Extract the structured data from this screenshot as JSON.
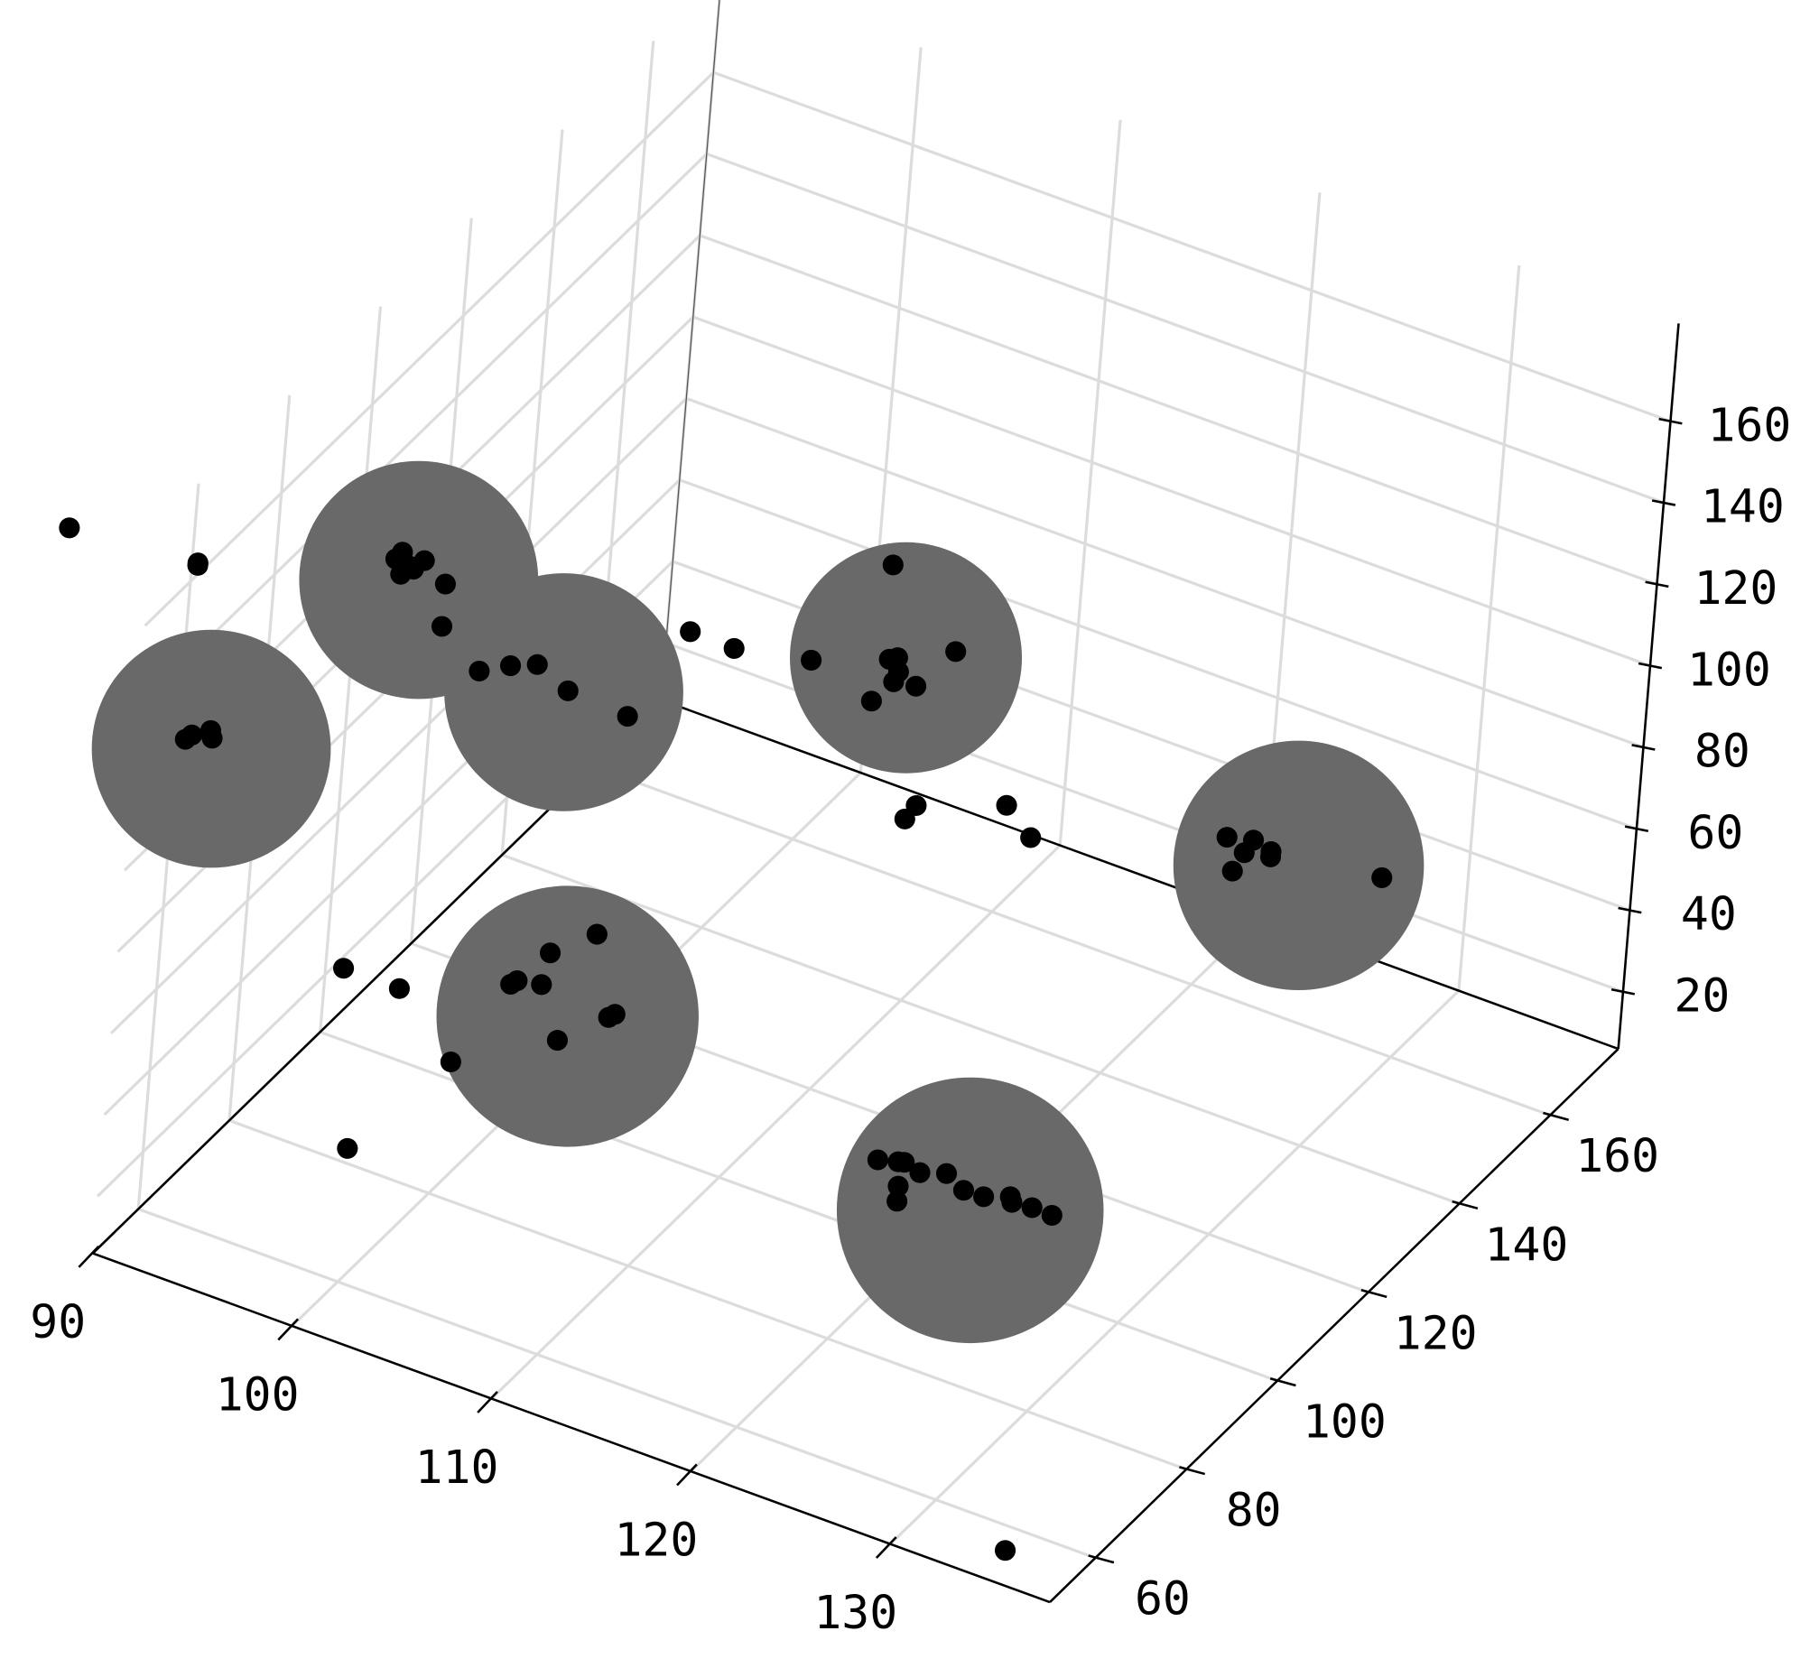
{
  "chart_data": {
    "type": "scatter3d",
    "xlim": [
      90,
      138
    ],
    "ylim": [
      50,
      175
    ],
    "zlim": [
      6,
      184
    ],
    "xticks": [
      90,
      100,
      110,
      120,
      130
    ],
    "yticks": [
      60,
      80,
      100,
      120,
      140,
      160
    ],
    "zticks": [
      20,
      40,
      60,
      80,
      100,
      120,
      140,
      160
    ],
    "grid": true,
    "series": [
      {
        "marker": "sphere",
        "color": "#696969",
        "x": [
          92.3,
          95.0,
          101.5,
          111.3,
          127.8,
          103.2,
          124.6
        ],
        "y": [
          57,
          90,
          95,
          128,
          145,
          94,
          89
        ],
        "z": [
          126.3,
          136.7,
          115.3,
          105.4,
          65.4,
          39.9,
          35.9
        ],
        "sizes": [
          103,
          103,
          103,
          100,
          108,
          113,
          115
        ]
      },
      {
        "marker": "point",
        "color": "#000000",
        "x": [
          119.9,
          120.9,
          121.2,
          122.0,
          123.3,
          124.2,
          125.2,
          126.5,
          126.6,
          127.6,
          128.6,
          121.0,
          121.0,
          134.6,
          104.3,
          102.1,
          100.6,
          100.3,
          101.8,
          105.2,
          105.5,
          102.8,
          92.1,
          94.9,
          97.7,
          97.9,
          124.2,
          125.5,
          125.1,
          126.4,
          126.4,
          124.6,
          131.9,
          110.3,
          106.7,
          113.7,
          110.5,
          110.9,
          111.0,
          110.8,
          111.9,
          109.8,
          112.4,
          111.9,
          116.8,
          118.1,
          100.7,
          102.9,
          97.3,
          98.8,
          100.1,
          101.7,
          104.7,
          95.3,
          95.3,
          94.1,
          93.8,
          94.5,
          95.2,
          94.1,
          94.7,
          91.0,
          91.3,
          92.2,
          92.3,
          84.5,
          90.9,
          90.9
        ],
        "y": [
          89,
          89,
          89,
          89,
          89,
          89,
          89,
          89,
          89,
          89,
          89,
          89,
          89,
          55,
          94,
          94,
          94,
          94,
          94,
          94,
          94,
          94,
          94,
          94,
          94,
          70,
          145,
          145,
          145,
          145,
          145,
          145,
          145,
          128,
          128,
          128,
          128,
          128,
          128,
          128,
          128,
          128,
          128,
          128,
          128,
          128,
          128,
          128,
          95,
          95,
          95,
          95,
          95,
          95,
          95,
          90,
          90,
          90,
          90,
          90,
          90,
          57,
          57,
          57,
          57,
          57,
          57,
          57
        ],
        "z": [
          39.9,
          41.2,
          41.6,
          40.5,
          42.6,
          40.1,
          40.3,
          42.6,
          41.4,
          41.9,
          41.8,
          35.4,
          31.7,
          7.2,
          62.0,
          53.5,
          44.0,
          42.6,
          45.2,
          43.2,
          44.5,
          33.3,
          31.9,
          31.9,
          18.9,
          24.1,
          65.9,
          67.5,
          63.7,
          66.3,
          65.0,
          58.3,
          69.7,
          126.4,
          96.6,
          111.2,
          103.6,
          104.7,
          101.4,
          98.6,
          99.5,
          92.1,
          71.1,
          66.9,
          79.0,
          73.4,
          92.9,
          92.7,
          113.0,
          117.0,
          119.6,
          116.0,
          115.1,
          120.4,
          130.8,
          141.9,
          139.7,
          139.2,
          141.8,
          136.5,
          138.8,
          126.3,
          127.9,
          130.6,
          128.9,
          166.6,
          169.4,
          168.8
        ]
      }
    ]
  }
}
